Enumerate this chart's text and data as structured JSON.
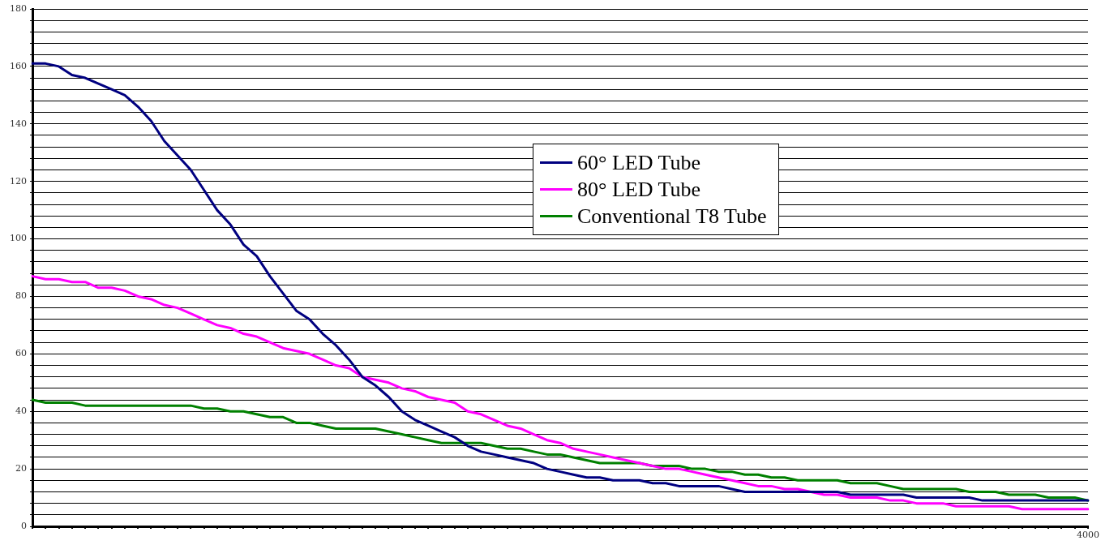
{
  "chart_data": {
    "type": "line",
    "categories": [
      null,
      null,
      null,
      null,
      null,
      null,
      null,
      null,
      null,
      null,
      null,
      null,
      null,
      null,
      null,
      null,
      null,
      null,
      null,
      null,
      null,
      null,
      null,
      null,
      null,
      null,
      null,
      null,
      null,
      null,
      null,
      null,
      null,
      null,
      null,
      null,
      null,
      null,
      null,
      null,
      null,
      null,
      null,
      null,
      null,
      null,
      null,
      null,
      null,
      null,
      null,
      null,
      null,
      null,
      null,
      null,
      null,
      null,
      null,
      null,
      null,
      null,
      null,
      null,
      null,
      null,
      null,
      null,
      null,
      null,
      null,
      null,
      null,
      null,
      null,
      null,
      null,
      null,
      null,
      null,
      "4000"
    ],
    "series": [
      {
        "name": "60° LED Tube",
        "color": "#000080",
        "values": [
          161,
          161,
          160,
          157,
          156,
          154,
          152,
          150,
          146,
          141,
          134,
          129,
          124,
          117,
          110,
          105,
          98,
          94,
          87,
          81,
          75,
          72,
          67,
          63,
          58,
          52,
          49,
          45,
          40,
          37,
          35,
          33,
          31,
          28,
          26,
          25,
          24,
          23,
          22,
          20,
          19,
          18,
          17,
          17,
          16,
          16,
          16,
          15,
          15,
          14,
          14,
          14,
          14,
          13,
          12,
          12,
          12,
          12,
          12,
          12,
          12,
          12,
          11,
          11,
          11,
          11,
          11,
          10,
          10,
          10,
          10,
          10,
          9,
          9,
          9,
          9,
          9,
          9,
          9,
          9,
          9
        ]
      },
      {
        "name": "80° LED Tube",
        "color": "#ff00ff",
        "values": [
          87,
          86,
          86,
          85,
          85,
          83,
          83,
          82,
          80,
          79,
          77,
          76,
          74,
          72,
          70,
          69,
          67,
          66,
          64,
          62,
          61,
          60,
          58,
          56,
          55,
          52,
          51,
          50,
          48,
          47,
          45,
          44,
          43,
          40,
          39,
          37,
          35,
          34,
          32,
          30,
          29,
          27,
          26,
          25,
          24,
          23,
          22,
          21,
          20,
          20,
          19,
          18,
          17,
          16,
          15,
          14,
          14,
          13,
          13,
          12,
          11,
          11,
          10,
          10,
          10,
          9,
          9,
          8,
          8,
          8,
          7,
          7,
          7,
          7,
          7,
          6,
          6,
          6,
          6,
          6,
          6
        ]
      },
      {
        "name": "Conventional T8 Tube",
        "color": "#008000",
        "values": [
          44,
          43,
          43,
          43,
          42,
          42,
          42,
          42,
          42,
          42,
          42,
          42,
          42,
          41,
          41,
          40,
          40,
          39,
          38,
          38,
          36,
          36,
          35,
          34,
          34,
          34,
          34,
          33,
          32,
          31,
          30,
          29,
          29,
          29,
          29,
          28,
          27,
          27,
          26,
          25,
          25,
          24,
          23,
          22,
          22,
          22,
          22,
          21,
          21,
          21,
          20,
          20,
          19,
          19,
          18,
          18,
          17,
          17,
          16,
          16,
          16,
          16,
          15,
          15,
          15,
          14,
          13,
          13,
          13,
          13,
          13,
          12,
          12,
          12,
          11,
          11,
          11,
          10,
          10,
          10,
          9
        ]
      }
    ],
    "ylim": [
      0,
      180
    ],
    "yticks": [
      0,
      {
        "value": 4,
        "label": null
      },
      {
        "value": 8,
        "label": null
      },
      {
        "value": 12,
        "label": null
      },
      {
        "value": 16,
        "label": null
      },
      20,
      {
        "value": 24,
        "label": null
      },
      {
        "value": 28,
        "label": null
      },
      {
        "value": 32,
        "label": null
      },
      {
        "value": 36,
        "label": null
      },
      40,
      {
        "value": 44,
        "label": null
      },
      {
        "value": 48,
        "label": null
      },
      {
        "value": 52,
        "label": null
      },
      {
        "value": 56,
        "label": null
      },
      60,
      {
        "value": 64,
        "label": null
      },
      {
        "value": 68,
        "label": null
      },
      {
        "value": 72,
        "label": null
      },
      {
        "value": 76,
        "label": null
      },
      80,
      {
        "value": 84,
        "label": null
      },
      {
        "value": 88,
        "label": null
      },
      {
        "value": 92,
        "label": null
      },
      {
        "value": 96,
        "label": null
      },
      100,
      {
        "value": 104,
        "label": null
      },
      {
        "value": 108,
        "label": null
      },
      {
        "value": 112,
        "label": null
      },
      {
        "value": 116,
        "label": null
      },
      120,
      {
        "value": 124,
        "label": null
      },
      {
        "value": 128,
        "label": null
      },
      {
        "value": 132,
        "label": null
      },
      {
        "value": 136,
        "label": null
      },
      140,
      {
        "value": 144,
        "label": null
      },
      {
        "value": 148,
        "label": null
      },
      {
        "value": 152,
        "label": null
      },
      {
        "value": 156,
        "label": null
      },
      160,
      {
        "value": 164,
        "label": null
      },
      {
        "value": 168,
        "label": null
      },
      {
        "value": 172,
        "label": null
      },
      {
        "value": 176,
        "label": null
      },
      180
    ],
    "grid": "y",
    "legend": "center",
    "marker": "none",
    "line_style": "solid"
  }
}
